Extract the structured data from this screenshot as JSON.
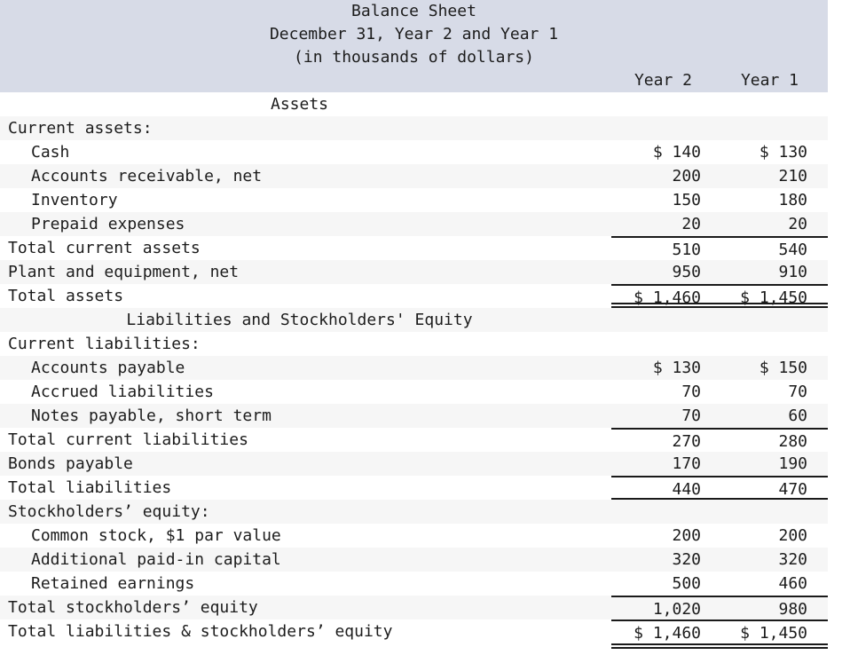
{
  "header": {
    "title": "Balance Sheet",
    "subtitle": "December 31, Year 2 and Year 1",
    "unit_note": "(in thousands of dollars)",
    "col_year2": "Year 2",
    "col_year1": "Year 1"
  },
  "colors": {
    "header_bg": "#d7dbe7",
    "row_stripe_bg": "#f6f6f6",
    "text": "#1c1c1c",
    "rule": "#1a1a1a"
  },
  "rows": [
    {
      "label": "Assets",
      "year2": "",
      "year1": ""
    },
    {
      "label": "Current assets:",
      "year2": "",
      "year1": ""
    },
    {
      "label": "Cash",
      "year2": "$ 140",
      "year1": "$ 130"
    },
    {
      "label": "Accounts receivable, net",
      "year2": "200",
      "year1": "210"
    },
    {
      "label": "Inventory",
      "year2": "150",
      "year1": "180"
    },
    {
      "label": "Prepaid expenses",
      "year2": "20",
      "year1": "20"
    },
    {
      "label": "Total current assets",
      "year2": "510",
      "year1": "540"
    },
    {
      "label": "Plant and equipment, net",
      "year2": "950",
      "year1": "910"
    },
    {
      "label": "Total assets",
      "year2": "$ 1,460",
      "year1": "$ 1,450"
    },
    {
      "label": "Liabilities and Stockholders' Equity",
      "year2": "",
      "year1": ""
    },
    {
      "label": "Current liabilities:",
      "year2": "",
      "year1": ""
    },
    {
      "label": "Accounts payable",
      "year2": "$ 130",
      "year1": "$ 150"
    },
    {
      "label": "Accrued liabilities",
      "year2": "70",
      "year1": "70"
    },
    {
      "label": "Notes payable, short term",
      "year2": "70",
      "year1": "60"
    },
    {
      "label": "Total current liabilities",
      "year2": "270",
      "year1": "280"
    },
    {
      "label": "Bonds payable",
      "year2": "170",
      "year1": "190"
    },
    {
      "label": "Total liabilities",
      "year2": "440",
      "year1": "470"
    },
    {
      "label": "Stockholders’ equity:",
      "year2": "",
      "year1": ""
    },
    {
      "label": "Common stock, $1 par value",
      "year2": "200",
      "year1": "200"
    },
    {
      "label": "Additional paid-in capital",
      "year2": "320",
      "year1": "320"
    },
    {
      "label": "Retained earnings",
      "year2": "500",
      "year1": "460"
    },
    {
      "label": "Total stockholders’ equity",
      "year2": "1,020",
      "year1": "980"
    },
    {
      "label": "Total liabilities & stockholders’ equity",
      "year2": "$ 1,460",
      "year1": "$ 1,450"
    }
  ]
}
